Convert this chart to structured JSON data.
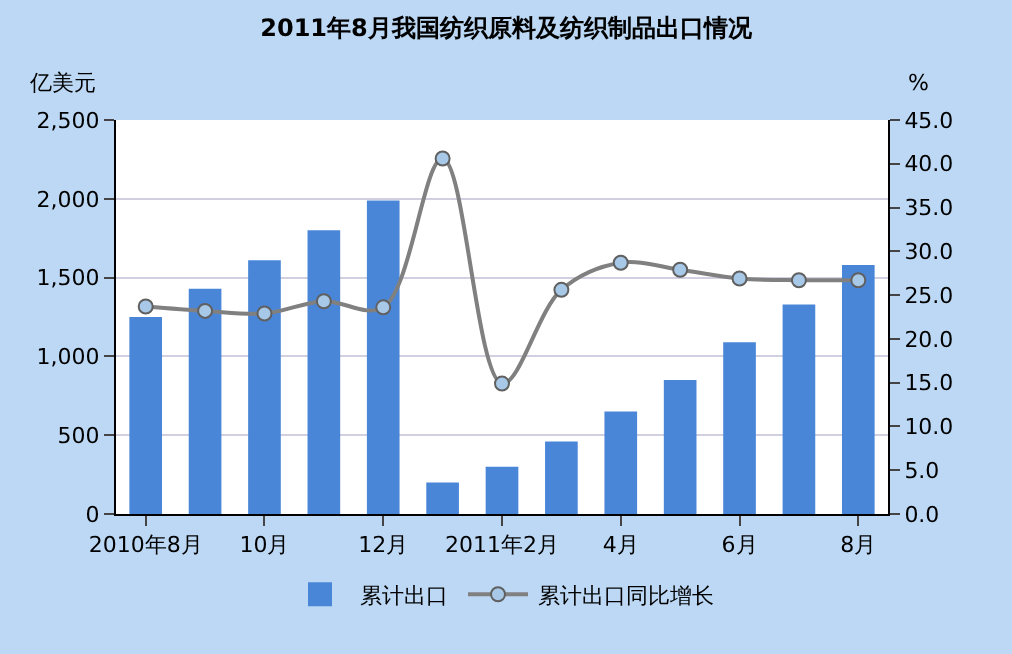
{
  "chart_data": {
    "type": "bar",
    "title": "2011年8月我国纺织原料及纺织制品出口情况",
    "ylabel": "亿美元",
    "y2label": "%",
    "categories": [
      "2010年8月",
      null,
      "10月",
      null,
      "12月",
      null,
      "2011年2月",
      null,
      "4月",
      null,
      "6月",
      null,
      "8月"
    ],
    "series": [
      {
        "name": "累计出口",
        "color": "#4a86d8",
        "values": [
          1250,
          1430,
          1610,
          1800,
          1990,
          200,
          300,
          460,
          650,
          850,
          1090,
          1330,
          1580
        ]
      },
      {
        "name": "累计出口同比增长",
        "type": "line",
        "axis": "y2",
        "color": "#808080",
        "marker": "circle",
        "values": [
          23.7,
          23.2,
          22.9,
          24.3,
          23.6,
          40.6,
          14.9,
          25.6,
          28.7,
          27.9,
          26.9,
          26.7,
          26.7
        ]
      }
    ],
    "ylim": [
      0,
      2500
    ],
    "yticks": [
      0,
      500,
      {
        "value": 1000,
        "label": "1,000"
      },
      {
        "value": 1500,
        "label": "1,500"
      },
      {
        "value": 2000,
        "label": "2,000"
      },
      {
        "value": 2500,
        "label": "2,500"
      }
    ],
    "y2lim": [
      0,
      45
    ],
    "y2ticks": [
      {
        "value": 0,
        "label": "0.0"
      },
      {
        "value": 5,
        "label": "5.0"
      },
      {
        "value": 10,
        "label": "10.0"
      },
      {
        "value": 15,
        "label": "15.0"
      },
      {
        "value": 20,
        "label": "20.0"
      },
      {
        "value": 25,
        "label": "25.0"
      },
      {
        "value": 30,
        "label": "30.0"
      },
      {
        "value": 35,
        "label": "35.0"
      },
      {
        "value": 40,
        "label": "40.0"
      },
      {
        "value": 45,
        "label": "45.0"
      }
    ],
    "grid": "y",
    "legend": "bottom"
  }
}
